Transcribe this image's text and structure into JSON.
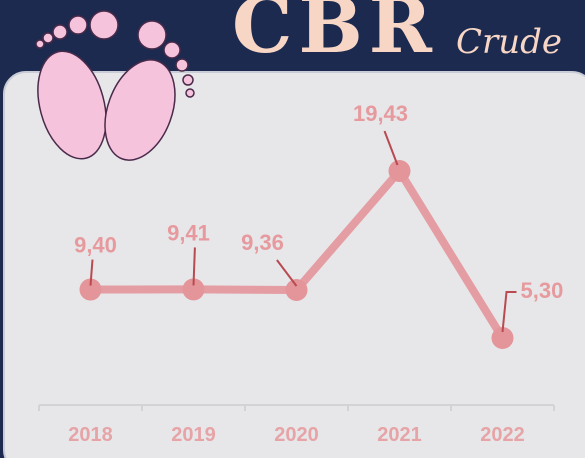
{
  "chart_data": {
    "type": "line",
    "title": "CBR",
    "subtitle": "Crude",
    "categories": [
      "2018",
      "2019",
      "2020",
      "2021",
      "2022"
    ],
    "values": [
      9.4,
      9.41,
      9.36,
      19.43,
      5.3
    ],
    "value_labels": [
      "9,40",
      "9,41",
      "9,36",
      "19,43",
      "5,30"
    ],
    "color": "#e3959a"
  }
}
